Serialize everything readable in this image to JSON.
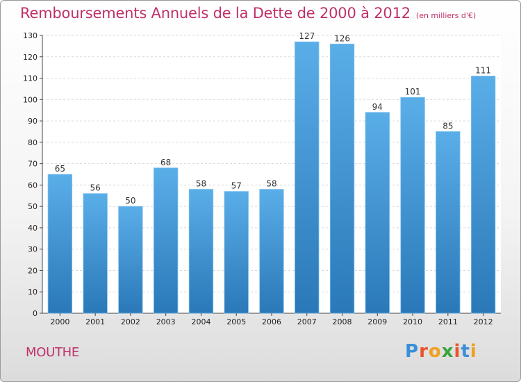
{
  "chart_data": {
    "type": "bar",
    "title": "Remboursements Annuels de la Dette de 2000 à 2012",
    "subtitle": "(en milliers d'€)",
    "categories": [
      "2000",
      "2001",
      "2002",
      "2003",
      "2004",
      "2005",
      "2006",
      "2007",
      "2008",
      "2009",
      "2010",
      "2011",
      "2012"
    ],
    "values": [
      65,
      56,
      50,
      68,
      58,
      57,
      58,
      127,
      126,
      94,
      101,
      85,
      111
    ],
    "ylim": [
      0,
      130
    ],
    "yticks": [
      0,
      10,
      20,
      30,
      40,
      50,
      60,
      70,
      80,
      90,
      100,
      110,
      120,
      130
    ],
    "grid": true,
    "bar_color_top": "#5aaee8",
    "bar_color_bottom": "#2a78b8"
  },
  "footer": {
    "commune": "MOUTHE",
    "logo_text": "Proxiti",
    "logo_letter_colors": [
      "#3a8fd8",
      "#e8552b",
      "#f0a020",
      "#3aa53a",
      "#e8552b",
      "#3a8fd8",
      "#f0a020"
    ]
  }
}
